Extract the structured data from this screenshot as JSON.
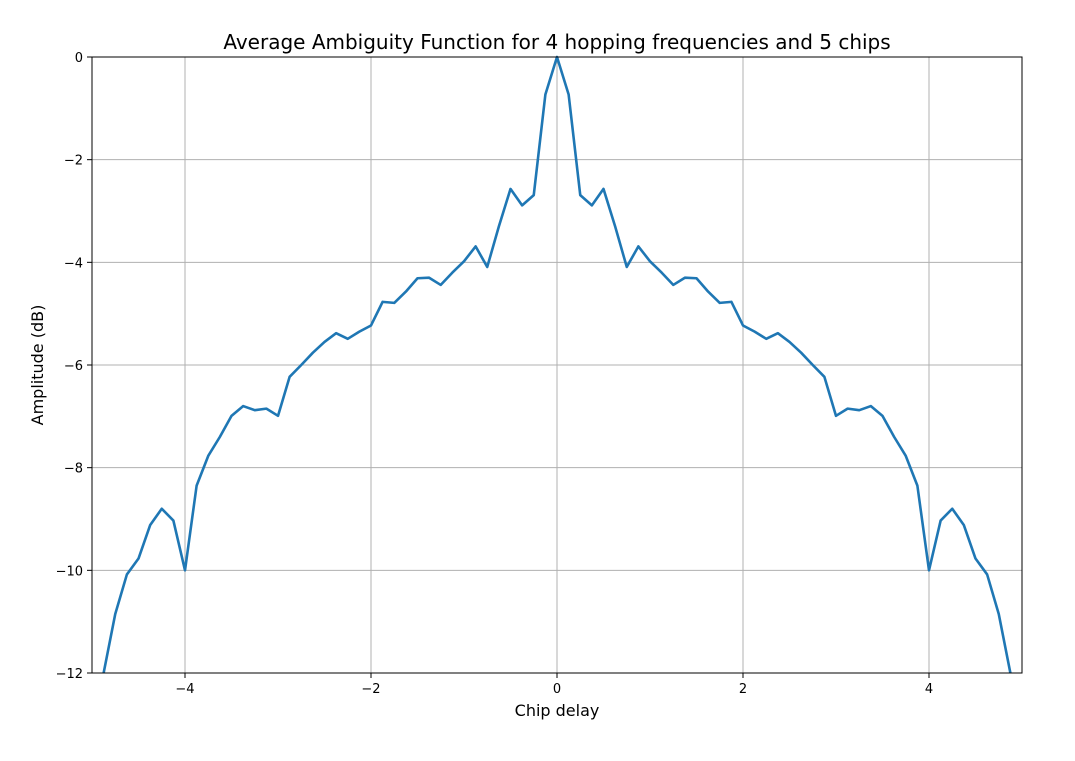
{
  "chart_data": {
    "type": "line",
    "title": "Average Ambiguity Function for 4 hopping frequencies and 5 chips",
    "xlabel": "Chip delay",
    "ylabel": "Amplitude (dB)",
    "xlim": [
      -5,
      5
    ],
    "ylim": [
      -12,
      0
    ],
    "grid": true,
    "xticks": [
      -4,
      -2,
      0,
      2,
      4
    ],
    "yticks": [
      0,
      -2,
      -4,
      -6,
      -8,
      -10,
      -12
    ],
    "xtick_labels": [
      "−4",
      "−2",
      "0",
      "2",
      "4"
    ],
    "ytick_labels": [
      "0",
      "−2",
      "−4",
      "−6",
      "−8",
      "−10",
      "−12"
    ],
    "series": [
      {
        "color": "#1f77b4",
        "x": [
          -4.875,
          -4.75,
          -4.625,
          -4.5,
          -4.375,
          -4.25,
          -4.125,
          -4.0,
          -3.875,
          -3.75,
          -3.625,
          -3.5,
          -3.375,
          -3.25,
          -3.125,
          -3.0,
          -2.875,
          -2.75,
          -2.625,
          -2.5,
          -2.375,
          -2.25,
          -2.125,
          -2.0,
          -1.875,
          -1.75,
          -1.625,
          -1.5,
          -1.375,
          -1.25,
          -1.125,
          -1.0,
          -0.875,
          -0.75,
          -0.625,
          -0.5,
          -0.375,
          -0.25,
          -0.125,
          0.0,
          0.125,
          0.25,
          0.375,
          0.5,
          0.625,
          0.75,
          0.875,
          1.0,
          1.125,
          1.25,
          1.375,
          1.5,
          1.625,
          1.75,
          1.875,
          2.0,
          2.125,
          2.25,
          2.375,
          2.5,
          2.625,
          2.75,
          2.875,
          3.0,
          3.125,
          3.25,
          3.375,
          3.5,
          3.625,
          3.75,
          3.875,
          4.0,
          4.125,
          4.25,
          4.375,
          4.5,
          4.625,
          4.75,
          4.875
        ],
        "y": [
          -12.0,
          -10.85,
          -10.08,
          -9.77,
          -9.12,
          -8.8,
          -9.03,
          -10.0,
          -8.35,
          -7.77,
          -7.4,
          -6.99,
          -6.8,
          -6.88,
          -6.85,
          -6.99,
          -6.23,
          -6.0,
          -5.76,
          -5.55,
          -5.38,
          -5.49,
          -5.35,
          -5.23,
          -4.77,
          -4.79,
          -4.57,
          -4.31,
          -4.3,
          -4.44,
          -4.2,
          -3.98,
          -3.69,
          -4.09,
          -3.3,
          -2.57,
          -2.89,
          -2.69,
          -0.73,
          0.0,
          -0.73,
          -2.69,
          -2.89,
          -2.57,
          -3.3,
          -4.09,
          -3.69,
          -3.98,
          -4.2,
          -4.44,
          -4.3,
          -4.31,
          -4.57,
          -4.79,
          -4.77,
          -5.23,
          -5.35,
          -5.49,
          -5.38,
          -5.55,
          -5.76,
          -6.0,
          -6.23,
          -6.99,
          -6.85,
          -6.88,
          -6.8,
          -6.99,
          -7.4,
          -7.77,
          -8.35,
          -10.0,
          -9.03,
          -8.8,
          -9.12,
          -9.77,
          -10.08,
          -10.85,
          -12.0
        ]
      }
    ]
  }
}
